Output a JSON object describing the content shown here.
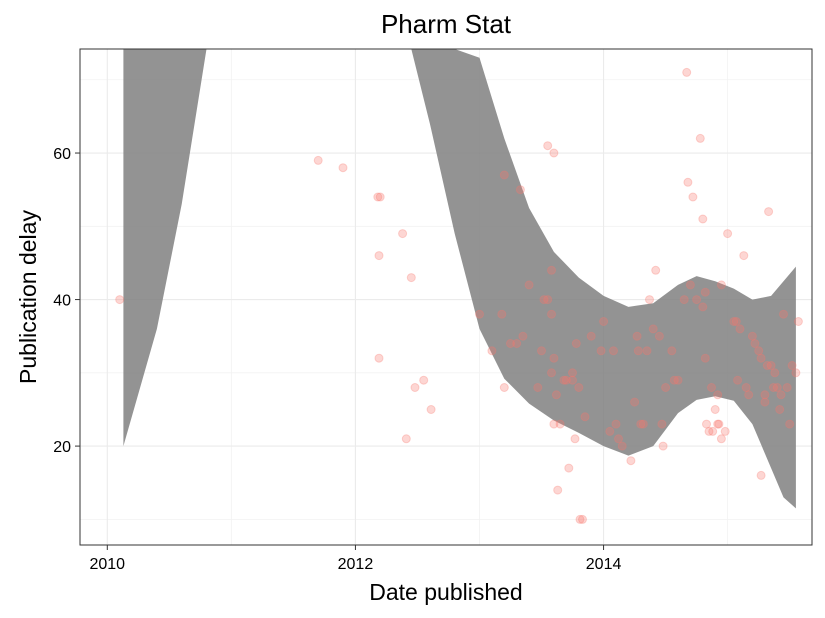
{
  "chart_data": {
    "type": "scatter",
    "title": "Pharm Stat",
    "xlabel": "Date published",
    "ylabel": "Publication delay",
    "xlim": [
      2009.78,
      2015.68
    ],
    "ylim": [
      6.5,
      74.2
    ],
    "x_ticks": [
      2010,
      2012,
      2014
    ],
    "x_tick_labels": [
      "2010",
      "2012",
      "2014"
    ],
    "y_ticks": [
      20,
      40,
      60
    ],
    "y_tick_labels": [
      "20",
      "40",
      "60"
    ],
    "grid": true,
    "theme": "white background, black panel border, light grey gridlines",
    "point_color": "#F8766D",
    "point_opacity": 0.3,
    "band_color": "#808080",
    "band_opacity": 0.85,
    "points": [
      [
        2010.1,
        40
      ],
      [
        2011.7,
        59
      ],
      [
        2011.9,
        58
      ],
      [
        2012.18,
        54
      ],
      [
        2012.2,
        54
      ],
      [
        2012.19,
        46
      ],
      [
        2012.19,
        32
      ],
      [
        2012.38,
        49
      ],
      [
        2012.41,
        21
      ],
      [
        2012.45,
        43
      ],
      [
        2012.48,
        28
      ],
      [
        2012.55,
        29
      ],
      [
        2012.61,
        25
      ],
      [
        2013.0,
        38
      ],
      [
        2013.1,
        33
      ],
      [
        2013.18,
        38
      ],
      [
        2013.2,
        57
      ],
      [
        2013.2,
        28
      ],
      [
        2013.25,
        34
      ],
      [
        2013.3,
        34
      ],
      [
        2013.33,
        55
      ],
      [
        2013.35,
        35
      ],
      [
        2013.4,
        42
      ],
      [
        2013.47,
        28
      ],
      [
        2013.5,
        33
      ],
      [
        2013.52,
        40
      ],
      [
        2013.55,
        40
      ],
      [
        2013.55,
        61
      ],
      [
        2013.58,
        44
      ],
      [
        2013.6,
        60
      ],
      [
        2013.58,
        38
      ],
      [
        2013.6,
        32
      ],
      [
        2013.62,
        27
      ],
      [
        2013.58,
        30
      ],
      [
        2013.6,
        23
      ],
      [
        2013.63,
        14
      ],
      [
        2013.65,
        23
      ],
      [
        2013.68,
        29
      ],
      [
        2013.7,
        29
      ],
      [
        2013.72,
        17
      ],
      [
        2013.75,
        29
      ],
      [
        2013.78,
        34
      ],
      [
        2013.75,
        30
      ],
      [
        2013.77,
        21
      ],
      [
        2013.8,
        28
      ],
      [
        2013.85,
        24
      ],
      [
        2013.81,
        10
      ],
      [
        2013.83,
        10
      ],
      [
        2013.9,
        35
      ],
      [
        2013.98,
        33
      ],
      [
        2014.0,
        37
      ],
      [
        2014.05,
        22
      ],
      [
        2014.08,
        33
      ],
      [
        2014.1,
        23
      ],
      [
        2014.12,
        21
      ],
      [
        2014.15,
        20
      ],
      [
        2014.22,
        18
      ],
      [
        2014.25,
        26
      ],
      [
        2014.28,
        33
      ],
      [
        2014.27,
        35
      ],
      [
        2014.3,
        23
      ],
      [
        2014.32,
        23
      ],
      [
        2014.35,
        33
      ],
      [
        2014.37,
        40
      ],
      [
        2014.4,
        36
      ],
      [
        2014.42,
        44
      ],
      [
        2014.45,
        35
      ],
      [
        2014.47,
        23
      ],
      [
        2014.48,
        20
      ],
      [
        2014.5,
        28
      ],
      [
        2014.55,
        33
      ],
      [
        2014.57,
        29
      ],
      [
        2014.6,
        29
      ],
      [
        2014.65,
        40
      ],
      [
        2014.67,
        71
      ],
      [
        2014.68,
        56
      ],
      [
        2014.72,
        54
      ],
      [
        2014.7,
        42
      ],
      [
        2014.75,
        40
      ],
      [
        2014.78,
        62
      ],
      [
        2014.8,
        51
      ],
      [
        2014.8,
        39
      ],
      [
        2014.82,
        41
      ],
      [
        2014.82,
        32
      ],
      [
        2014.83,
        23
      ],
      [
        2014.85,
        22
      ],
      [
        2014.87,
        28
      ],
      [
        2014.88,
        22
      ],
      [
        2014.9,
        25
      ],
      [
        2014.92,
        23
      ],
      [
        2014.92,
        27
      ],
      [
        2014.93,
        23
      ],
      [
        2014.95,
        42
      ],
      [
        2014.95,
        21
      ],
      [
        2014.98,
        22
      ],
      [
        2015.0,
        49
      ],
      [
        2015.05,
        37
      ],
      [
        2015.07,
        37
      ],
      [
        2015.08,
        29
      ],
      [
        2015.1,
        36
      ],
      [
        2015.13,
        46
      ],
      [
        2015.15,
        28
      ],
      [
        2015.17,
        27
      ],
      [
        2015.2,
        35
      ],
      [
        2015.22,
        34
      ],
      [
        2015.25,
        33
      ],
      [
        2015.27,
        32
      ],
      [
        2015.27,
        16
      ],
      [
        2015.3,
        26
      ],
      [
        2015.3,
        27
      ],
      [
        2015.32,
        31
      ],
      [
        2015.33,
        52
      ],
      [
        2015.35,
        31
      ],
      [
        2015.37,
        28
      ],
      [
        2015.38,
        30
      ],
      [
        2015.4,
        28
      ],
      [
        2015.42,
        25
      ],
      [
        2015.43,
        27
      ],
      [
        2015.45,
        38
      ],
      [
        2015.48,
        28
      ],
      [
        2015.5,
        23
      ],
      [
        2015.52,
        31
      ],
      [
        2015.55,
        30
      ],
      [
        2015.57,
        37
      ]
    ],
    "confidence_band": [
      [
        2010.13,
        20.0,
        74.2
      ],
      [
        2010.4,
        36.0,
        74.2
      ],
      [
        2010.6,
        53.0,
        74.2
      ],
      [
        2010.8,
        74.2,
        74.2
      ],
      [
        2012.45,
        74.2,
        74.2
      ],
      [
        2012.6,
        64.0,
        74.2
      ],
      [
        2012.8,
        49.0,
        74.2
      ],
      [
        2013.0,
        36.0,
        73.0
      ],
      [
        2013.2,
        29.2,
        62.0
      ],
      [
        2013.4,
        25.8,
        52.5
      ],
      [
        2013.6,
        23.5,
        46.5
      ],
      [
        2013.8,
        21.8,
        43.0
      ],
      [
        2014.0,
        20.0,
        40.5
      ],
      [
        2014.2,
        18.7,
        39.0
      ],
      [
        2014.4,
        20.0,
        39.5
      ],
      [
        2014.6,
        24.5,
        42.0
      ],
      [
        2014.75,
        26.3,
        43.2
      ],
      [
        2014.9,
        26.8,
        42.5
      ],
      [
        2015.05,
        26.2,
        41.5
      ],
      [
        2015.2,
        23.0,
        40.0
      ],
      [
        2015.35,
        17.0,
        40.5
      ],
      [
        2015.45,
        13.0,
        42.5
      ],
      [
        2015.55,
        11.5,
        44.5
      ]
    ]
  }
}
